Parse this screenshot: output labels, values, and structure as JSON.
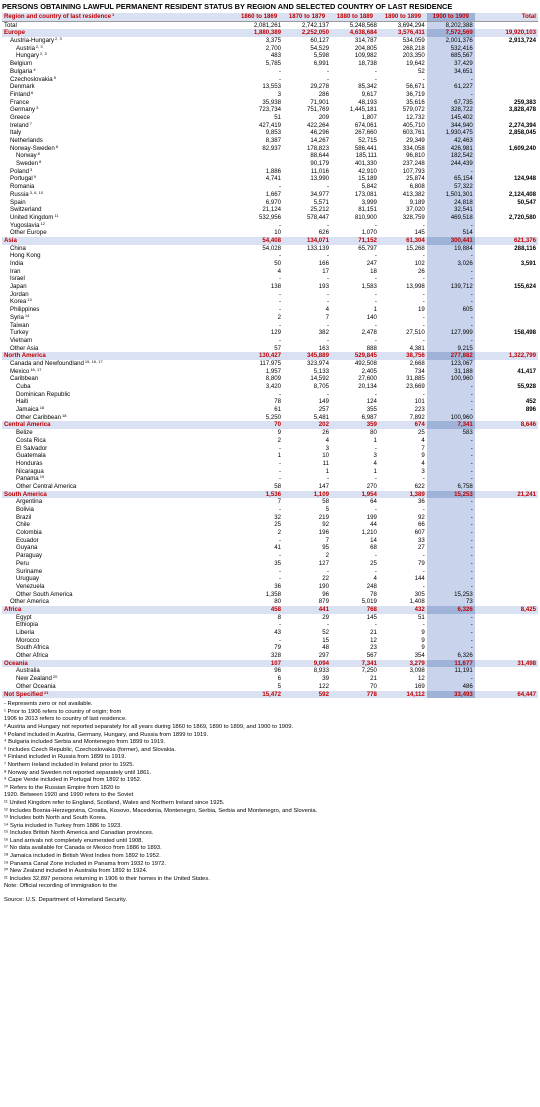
{
  "title": "PERSONS OBTAINING LAWFUL PERMANENT RESIDENT STATUS BY REGION AND SELECTED COUNTRY OF LAST RESIDENCE",
  "header": {
    "first": "Region and country of last residence",
    "first_sup": "1",
    "cols": [
      "1860 to 1869",
      "1870 to 1879",
      "1880 to 1889",
      "1890 to 1899",
      "1900 to 1909"
    ],
    "total": "Total"
  },
  "rows": [
    {
      "l": "Total",
      "lv": 1,
      "v": [
        "2,081,261",
        "2,742,137",
        "5,248,568",
        "3,694,294",
        "8,202,388"
      ],
      "t": ""
    },
    {
      "l": "Europe",
      "r": 1,
      "v": [
        "1,880,389",
        "2,252,050",
        "4,638,684",
        "3,576,411",
        "7,572,569"
      ],
      "t": "19,920,103"
    },
    {
      "l": "Austria-Hungary",
      "s": "2, 3",
      "lv": 2,
      "v": [
        "3,375",
        "60,127",
        "314,787",
        "534,059",
        "2,001,376"
      ],
      "t": "2,913,724"
    },
    {
      "l": "Austria",
      "s": "2, 3",
      "lv": 3,
      "v": [
        "2,700",
        "54,529",
        "204,805",
        "268,218",
        "532,416"
      ],
      "t": ""
    },
    {
      "l": "Hungary",
      "s": "2, 3",
      "lv": 3,
      "v": [
        "483",
        "5,598",
        "109,982",
        "203,350",
        "685,567"
      ],
      "t": ""
    },
    {
      "l": "Belgium",
      "lv": 2,
      "v": [
        "5,785",
        "6,991",
        "18,738",
        "19,642",
        "37,429"
      ],
      "t": ""
    },
    {
      "l": "Bulgaria",
      "s": "4",
      "lv": 2,
      "v": [
        "-",
        "-",
        "-",
        "52",
        "34,651"
      ],
      "t": ""
    },
    {
      "l": "Czechoslovakia",
      "s": "5",
      "lv": 2,
      "v": [
        "-",
        "-",
        "-",
        "-",
        "-"
      ],
      "t": ""
    },
    {
      "l": "Denmark",
      "lv": 2,
      "v": [
        "13,553",
        "29,278",
        "85,342",
        "56,671",
        "61,227"
      ],
      "t": ""
    },
    {
      "l": "Finland",
      "s": "6",
      "lv": 2,
      "v": [
        "3",
        "286",
        "9,617",
        "36,719",
        "-"
      ],
      "t": ""
    },
    {
      "l": "France",
      "lv": 2,
      "v": [
        "35,938",
        "71,901",
        "48,193",
        "35,616",
        "67,735"
      ],
      "t": "259,383"
    },
    {
      "l": "Germany",
      "s": "3",
      "lv": 2,
      "v": [
        "723,734",
        "751,769",
        "1,445,181",
        "579,072",
        "328,722"
      ],
      "t": "3,828,478"
    },
    {
      "l": "Greece",
      "lv": 2,
      "v": [
        "51",
        "209",
        "1,807",
        "12,732",
        "145,402"
      ],
      "t": ""
    },
    {
      "l": "Ireland",
      "s": "7",
      "lv": 2,
      "v": [
        "427,419",
        "422,264",
        "674,061",
        "405,710",
        "344,940"
      ],
      "t": "2,274,394"
    },
    {
      "l": "Italy",
      "lv": 2,
      "v": [
        "9,853",
        "46,296",
        "267,660",
        "603,761",
        "1,930,475"
      ],
      "t": "2,858,045"
    },
    {
      "l": "Netherlands",
      "lv": 2,
      "v": [
        "8,387",
        "14,267",
        "52,715",
        "29,349",
        "42,463"
      ],
      "t": ""
    },
    {
      "l": "Norway-Sweden",
      "s": "8",
      "lv": 2,
      "v": [
        "82,937",
        "178,823",
        "586,441",
        "334,058",
        "426,981"
      ],
      "t": "1,609,240"
    },
    {
      "l": "Norway",
      "s": "8",
      "lv": 3,
      "v": [
        "",
        "88,644",
        "185,111",
        "96,810",
        "182,542"
      ],
      "t": ""
    },
    {
      "l": "Sweden",
      "s": "8",
      "lv": 3,
      "v": [
        "",
        "90,179",
        "401,330",
        "237,248",
        "244,439"
      ],
      "t": ""
    },
    {
      "l": "Poland",
      "s": "3",
      "lv": 2,
      "v": [
        "1,886",
        "11,016",
        "42,910",
        "107,793",
        "-"
      ],
      "t": ""
    },
    {
      "l": "Portugal",
      "s": "9",
      "lv": 2,
      "v": [
        "4,741",
        "13,990",
        "15,189",
        "25,874",
        "65,154"
      ],
      "t": "124,948"
    },
    {
      "l": "Romania",
      "lv": 2,
      "v": [
        "-",
        "-",
        "5,842",
        "6,808",
        "57,322"
      ],
      "t": ""
    },
    {
      "l": "Russia",
      "s": "3, 6, 10",
      "lv": 2,
      "v": [
        "1,667",
        "34,977",
        "173,081",
        "413,382",
        "1,501,301"
      ],
      "t": "2,124,408"
    },
    {
      "l": "Spain",
      "lv": 2,
      "v": [
        "6,970",
        "5,571",
        "3,999",
        "9,189",
        "24,818"
      ],
      "t": "50,547"
    },
    {
      "l": "Switzerland",
      "lv": 2,
      "v": [
        "21,124",
        "25,212",
        "81,151",
        "37,020",
        "32,541"
      ],
      "t": ""
    },
    {
      "l": "United Kingdom",
      "s": "11",
      "lv": 2,
      "v": [
        "532,956",
        "578,447",
        "810,900",
        "328,759",
        "469,518"
      ],
      "t": "2,720,580"
    },
    {
      "l": "Yugoslavia",
      "s": "12",
      "lv": 2,
      "v": [
        "-",
        "-",
        "-",
        "-",
        "-"
      ],
      "t": ""
    },
    {
      "l": "Other Europe",
      "lv": 2,
      "v": [
        "10",
        "626",
        "1,070",
        "145",
        "514"
      ],
      "t": ""
    },
    {
      "l": "Asia",
      "r": 1,
      "v": [
        "54,408",
        "134,071",
        "71,152",
        "61,304",
        "300,441"
      ],
      "t": "621,376"
    },
    {
      "l": "China",
      "lv": 2,
      "v": [
        "54,028",
        "133,139",
        "65,797",
        "15,268",
        "19,884"
      ],
      "t": "288,116"
    },
    {
      "l": "Hong Kong",
      "lv": 2,
      "v": [
        "-",
        "-",
        "-",
        "-",
        "-"
      ],
      "t": ""
    },
    {
      "l": "India",
      "lv": 2,
      "v": [
        "50",
        "166",
        "247",
        "102",
        "3,026"
      ],
      "t": "3,591"
    },
    {
      "l": "Iran",
      "lv": 2,
      "v": [
        "4",
        "17",
        "18",
        "26",
        "-"
      ],
      "t": ""
    },
    {
      "l": "Israel",
      "lv": 2,
      "v": [
        "-",
        "-",
        "-",
        "-",
        "-"
      ],
      "t": ""
    },
    {
      "l": "Japan",
      "lv": 2,
      "v": [
        "138",
        "193",
        "1,583",
        "13,998",
        "139,712"
      ],
      "t": "155,624"
    },
    {
      "l": "Jordan",
      "lv": 2,
      "v": [
        "-",
        "-",
        "-",
        "-",
        "-"
      ],
      "t": ""
    },
    {
      "l": "Korea",
      "s": "13",
      "lv": 2,
      "v": [
        "-",
        "-",
        "-",
        "-",
        "-"
      ],
      "t": ""
    },
    {
      "l": "Philippines",
      "lv": 2,
      "v": [
        "-",
        "4",
        "1",
        "19",
        "605"
      ],
      "t": ""
    },
    {
      "l": "Syria",
      "s": "14",
      "lv": 2,
      "v": [
        "2",
        "7",
        "140",
        "-",
        "-"
      ],
      "t": ""
    },
    {
      "l": "Taiwan",
      "lv": 2,
      "v": [
        "-",
        "-",
        "-",
        "-",
        "-"
      ],
      "t": ""
    },
    {
      "l": "Turkey",
      "lv": 2,
      "v": [
        "129",
        "382",
        "2,478",
        "27,510",
        "127,999"
      ],
      "t": "158,498"
    },
    {
      "l": "Vietnam",
      "lv": 2,
      "v": [
        "-",
        "-",
        "-",
        "-",
        "-"
      ],
      "t": ""
    },
    {
      "l": "Other Asia",
      "lv": 2,
      "v": [
        "57",
        "163",
        "888",
        "4,381",
        "9,215"
      ],
      "t": ""
    },
    {
      "l": "North America",
      "r": 1,
      "v": [
        "130,427",
        "345,889",
        "529,845",
        "38,756",
        "277,882"
      ],
      "t": "1,322,799"
    },
    {
      "l": "Canada and Newfoundland",
      "s": "15, 16, 17",
      "lv": 2,
      "v": [
        "117,975",
        "323,974",
        "492,508",
        "2,668",
        "123,067"
      ],
      "t": ""
    },
    {
      "l": "Mexico",
      "s": "16, 17",
      "lv": 2,
      "v": [
        "1,957",
        "5,133",
        "2,405",
        "734",
        "31,188"
      ],
      "t": "41,417"
    },
    {
      "l": "Caribbean",
      "lv": 2,
      "v": [
        "8,809",
        "14,592",
        "27,600",
        "31,885",
        "100,960"
      ],
      "t": ""
    },
    {
      "l": "Cuba",
      "lv": 3,
      "v": [
        "3,420",
        "8,705",
        "20,134",
        "23,669",
        "-"
      ],
      "t": "55,928"
    },
    {
      "l": "Dominican Republic",
      "lv": 3,
      "v": [
        "-",
        "-",
        "-",
        "-",
        "-"
      ],
      "t": ""
    },
    {
      "l": "Haiti",
      "lv": 3,
      "v": [
        "78",
        "149",
        "124",
        "101",
        "-"
      ],
      "t": "452"
    },
    {
      "l": "Jamaica",
      "s": "18",
      "lv": 3,
      "v": [
        "61",
        "257",
        "355",
        "223",
        "-"
      ],
      "t": "896"
    },
    {
      "l": "Other Caribbean",
      "s": "18",
      "lv": 3,
      "v": [
        "5,250",
        "5,481",
        "6,987",
        "7,892",
        "100,960"
      ],
      "t": ""
    },
    {
      "l": "Central America",
      "r": 1,
      "v": [
        "70",
        "202",
        "359",
        "674",
        "7,341"
      ],
      "t": "8,646"
    },
    {
      "l": "Belize",
      "lv": 3,
      "v": [
        "9",
        "26",
        "80",
        "25",
        "583"
      ],
      "t": ""
    },
    {
      "l": "Costa Rica",
      "lv": 3,
      "v": [
        "2",
        "4",
        "1",
        "4",
        "-"
      ],
      "t": ""
    },
    {
      "l": "El Salvador",
      "lv": 3,
      "v": [
        "-",
        "3",
        "-",
        "7",
        "-"
      ],
      "t": ""
    },
    {
      "l": "Guatemala",
      "lv": 3,
      "v": [
        "1",
        "10",
        "3",
        "9",
        "-"
      ],
      "t": ""
    },
    {
      "l": "Honduras",
      "lv": 3,
      "v": [
        "-",
        "11",
        "4",
        "4",
        "-"
      ],
      "t": ""
    },
    {
      "l": "Nicaragua",
      "lv": 3,
      "v": [
        "-",
        "1",
        "1",
        "3",
        "-"
      ],
      "t": ""
    },
    {
      "l": "Panama",
      "s": "19",
      "lv": 3,
      "v": [
        "-",
        "-",
        "-",
        "-",
        "-"
      ],
      "t": ""
    },
    {
      "l": "Other Central America",
      "lv": 3,
      "v": [
        "58",
        "147",
        "270",
        "622",
        "6,758"
      ],
      "t": ""
    },
    {
      "l": "South America",
      "r": 1,
      "v": [
        "1,536",
        "1,109",
        "1,954",
        "1,389",
        "15,253"
      ],
      "t": "21,241"
    },
    {
      "l": "Argentina",
      "lv": 3,
      "v": [
        "7",
        "58",
        "64",
        "36",
        "-"
      ],
      "t": ""
    },
    {
      "l": "Bolivia",
      "lv": 3,
      "v": [
        "-",
        "5",
        "-",
        "-",
        "-"
      ],
      "t": ""
    },
    {
      "l": "Brazil",
      "lv": 3,
      "v": [
        "32",
        "219",
        "199",
        "92",
        "-"
      ],
      "t": ""
    },
    {
      "l": "Chile",
      "lv": 3,
      "v": [
        "25",
        "92",
        "44",
        "66",
        "-"
      ],
      "t": ""
    },
    {
      "l": "Colombia",
      "lv": 3,
      "v": [
        "2",
        "196",
        "1,210",
        "607",
        "-"
      ],
      "t": ""
    },
    {
      "l": "Ecuador",
      "lv": 3,
      "v": [
        "-",
        "7",
        "14",
        "33",
        "-"
      ],
      "t": ""
    },
    {
      "l": "Guyana",
      "lv": 3,
      "v": [
        "41",
        "95",
        "68",
        "27",
        "-"
      ],
      "t": ""
    },
    {
      "l": "Paraguay",
      "lv": 3,
      "v": [
        "-",
        "2",
        "-",
        "-",
        "-"
      ],
      "t": ""
    },
    {
      "l": "Peru",
      "lv": 3,
      "v": [
        "35",
        "127",
        "25",
        "79",
        "-"
      ],
      "t": ""
    },
    {
      "l": "Suriname",
      "lv": 3,
      "v": [
        "-",
        "-",
        "-",
        "-",
        "-"
      ],
      "t": ""
    },
    {
      "l": "Uruguay",
      "lv": 3,
      "v": [
        "-",
        "22",
        "4",
        "144",
        "-"
      ],
      "t": ""
    },
    {
      "l": "Venezuela",
      "lv": 3,
      "v": [
        "36",
        "190",
        "248",
        "-",
        "-"
      ],
      "t": ""
    },
    {
      "l": "Other South America",
      "lv": 3,
      "v": [
        "1,358",
        "96",
        "78",
        "305",
        "15,253"
      ],
      "t": ""
    },
    {
      "l": "Other America",
      "lv": 2,
      "v": [
        "80",
        "879",
        "5,019",
        "1,408",
        "73"
      ],
      "t": ""
    },
    {
      "l": "Africa",
      "r": 1,
      "v": [
        "458",
        "441",
        "768",
        "432",
        "6,326"
      ],
      "t": "8,425"
    },
    {
      "l": "Egypt",
      "lv": 3,
      "v": [
        "8",
        "29",
        "145",
        "51",
        "-"
      ],
      "t": ""
    },
    {
      "l": "Ethiopia",
      "lv": 3,
      "v": [
        "-",
        "-",
        "-",
        "-",
        "-"
      ],
      "t": ""
    },
    {
      "l": "Liberia",
      "lv": 3,
      "v": [
        "43",
        "52",
        "21",
        "9",
        "-"
      ],
      "t": ""
    },
    {
      "l": "Morocco",
      "lv": 3,
      "v": [
        "-",
        "15",
        "12",
        "9",
        "-"
      ],
      "t": ""
    },
    {
      "l": "South Africa",
      "lv": 3,
      "v": [
        "79",
        "48",
        "23",
        "9",
        "-"
      ],
      "t": ""
    },
    {
      "l": "Other Africa",
      "lv": 3,
      "v": [
        "328",
        "297",
        "567",
        "354",
        "6,326"
      ],
      "t": ""
    },
    {
      "l": "Oceania",
      "r": 1,
      "v": [
        "107",
        "9,094",
        "7,341",
        "3,279",
        "11,677"
      ],
      "t": "31,498"
    },
    {
      "l": "Australia",
      "lv": 3,
      "v": [
        "96",
        "8,933",
        "7,250",
        "3,098",
        "11,191"
      ],
      "t": ""
    },
    {
      "l": "New Zealand",
      "s": "20",
      "lv": 3,
      "v": [
        "6",
        "39",
        "21",
        "12",
        "-"
      ],
      "t": ""
    },
    {
      "l": "Other Oceania",
      "lv": 3,
      "v": [
        "5",
        "122",
        "70",
        "169",
        "486"
      ],
      "t": ""
    },
    {
      "l": "Not Specified",
      "s": "21",
      "r": 1,
      "v": [
        "15,472",
        "592",
        "778",
        "14,112",
        "33,493"
      ],
      "t": "64,447"
    }
  ],
  "notes": [
    "- Represents zero or not available.",
    "¹ Prior to 1906 refers to country of origin; from",
    "1906 to 2013 refers to country of last residence.",
    "² Austria and Hungary not reported separately for all years during 1860 to 1869, 1890 to 1899, and 1900 to 1909.",
    "³ Poland included in Austria, Germany, Hungary, and Russia from 1899 to 1919.",
    "⁴ Bulgaria included Serbia and Montenegro from 1899 to 1919.",
    "⁵ Includes Czech Republic, Czechoslovakia (former), and Slovakia.",
    "⁶ Finland included in Russia from 1899 to 1919.",
    "⁷ Northern Ireland included in Ireland prior to 1925.",
    "⁸ Norway and Sweden not reported separately until 1861.",
    "⁹ Cape Verde included in Portugal from 1892 to 1952.",
    "¹⁰ Refers to the Russian Empire from 1820 to",
    "1920. Between 1920 and 1990 refers to the Soviet",
    "¹¹ United Kingdom refer to England, Scotland, Wales and Northern Ireland since 1925.",
    "¹² Includes Bosnia-Herzegovina, Croatia, Kosovo, Macedonia, Montenegro, Serbia, Serbia and Montenegro, and Slovenia.",
    "¹³ Includes both North and South Korea.",
    "¹⁴ Syria included in Turkey from 1886 to 1923.",
    "¹⁵ Includes British North America and Canadian provinces.",
    "¹⁶ Land arrivals not completely enumerated until 1908.",
    "¹⁷ No data available for Canada or Mexico from 1886 to 1893.",
    "¹⁸ Jamaica included in British West Indies from 1892 to 1952.",
    "¹⁹ Panama Canal Zone included in Panama from 1932 to 1972.",
    "²⁰ New Zealand included in Australia from 1892 to 1924.",
    "²¹ Includes 32,897 persons returning in 1906 to their homes in the United States.",
    "Note: Official recording of immigration to the"
  ],
  "source": "Source: U.S. Department of Homeland Security."
}
